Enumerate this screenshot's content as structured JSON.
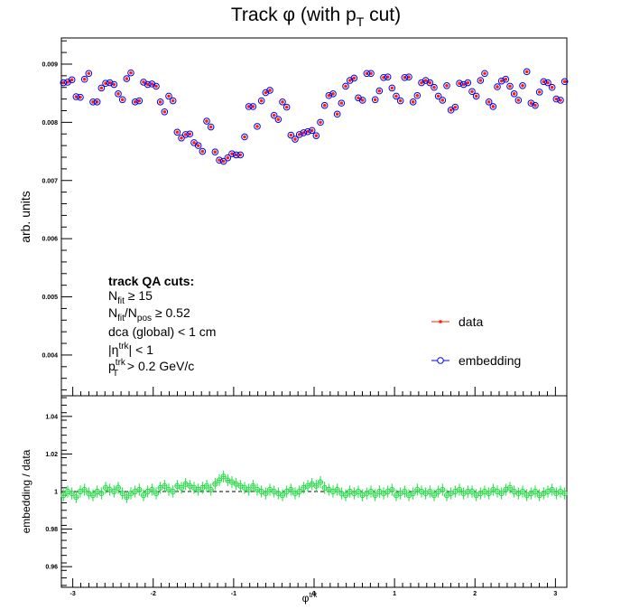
{
  "chart_data": [
    {
      "type": "scatter",
      "title_main": "Track φ (with p",
      "title_sub": "T",
      "title_end": " cut)",
      "ylabel": "arb. units",
      "ylim": [
        0.0033,
        0.00945
      ],
      "xlim": [
        -3.1416,
        3.1416
      ],
      "yticks": [
        "0.004",
        "0.005",
        "0.006",
        "0.007",
        "0.008",
        "0.009"
      ],
      "ytick_values": [
        0.004,
        0.005,
        0.006,
        0.007,
        0.008,
        0.009
      ],
      "grid": false,
      "legend_position": "bottom-right",
      "legend": [
        {
          "name": "data",
          "color": "#ff2200",
          "marker": "dot"
        },
        {
          "name": "embedding",
          "color": "#0000ee",
          "marker": "open-circle"
        }
      ],
      "annotation": {
        "heading": "track QA cuts:",
        "lines": [
          {
            "a": "N",
            "sub": "fit",
            "b": " ≥ 15"
          },
          {
            "a": "N",
            "sub": "fit",
            "b": "/N",
            "sub2": "pos",
            "c": " ≥ 0.52"
          },
          {
            "a": "dca (global) < 1 cm"
          },
          {
            "a": "|η",
            "sup": "trk",
            "b": "| < 1"
          },
          {
            "a": "p",
            "sup": "trk",
            "sub": "T",
            "b": " > 0.2 GeV/c"
          }
        ]
      },
      "series": [
        {
          "name": "data",
          "x_range": [
            -3.1416,
            3.1416
          ],
          "n_bins": 120,
          "values": [
            0.00868,
            0.00869,
            0.00873,
            0.00844,
            0.00843,
            0.00874,
            0.00884,
            0.00835,
            0.00835,
            0.00859,
            0.00867,
            0.00868,
            0.00865,
            0.00849,
            0.00839,
            0.00875,
            0.00885,
            0.00835,
            0.00837,
            0.00869,
            0.00865,
            0.00866,
            0.00862,
            0.00835,
            0.00818,
            0.00845,
            0.00837,
            0.00783,
            0.00773,
            0.00779,
            0.0078,
            0.00765,
            0.0076,
            0.0075,
            0.00802,
            0.00792,
            0.00749,
            0.00735,
            0.00733,
            0.00739,
            0.00746,
            0.00744,
            0.00744,
            0.00775,
            0.00827,
            0.00827,
            0.00793,
            0.00837,
            0.00851,
            0.00855,
            0.00812,
            0.00805,
            0.00835,
            0.00826,
            0.00778,
            0.00771,
            0.00779,
            0.00782,
            0.00784,
            0.00786,
            0.00777,
            0.008,
            0.00829,
            0.00846,
            0.00849,
            0.00814,
            0.00833,
            0.00862,
            0.00872,
            0.00876,
            0.00842,
            0.00838,
            0.00884,
            0.00884,
            0.00839,
            0.00854,
            0.00877,
            0.00878,
            0.00859,
            0.00845,
            0.00837,
            0.00877,
            0.00878,
            0.00835,
            0.00846,
            0.00868,
            0.00872,
            0.00868,
            0.0086,
            0.00845,
            0.00838,
            0.00863,
            0.00821,
            0.00826,
            0.00867,
            0.00865,
            0.00868,
            0.00853,
            0.00845,
            0.00872,
            0.00884,
            0.00835,
            0.00827,
            0.00861,
            0.00871,
            0.00874,
            0.00862,
            0.00849,
            0.00838,
            0.00863,
            0.00887,
            0.00833,
            0.00829,
            0.00852,
            0.0087,
            0.00868,
            0.0086,
            0.0084,
            0.00838,
            0.0087
          ]
        },
        {
          "name": "embedding",
          "x_range": [
            -3.1416,
            3.1416
          ],
          "n_bins": 120,
          "values": [
            0.00868,
            0.00869,
            0.00873,
            0.00844,
            0.00843,
            0.00874,
            0.00884,
            0.00835,
            0.00835,
            0.00859,
            0.00867,
            0.00868,
            0.00865,
            0.00849,
            0.00839,
            0.00875,
            0.00885,
            0.00835,
            0.00837,
            0.00869,
            0.00865,
            0.00866,
            0.00862,
            0.00835,
            0.00818,
            0.00845,
            0.00837,
            0.00783,
            0.00773,
            0.00779,
            0.0078,
            0.00765,
            0.0076,
            0.0075,
            0.00802,
            0.00792,
            0.00749,
            0.00735,
            0.00733,
            0.00739,
            0.00746,
            0.00744,
            0.00744,
            0.00775,
            0.00827,
            0.00827,
            0.00793,
            0.00837,
            0.00851,
            0.00855,
            0.00812,
            0.00805,
            0.00835,
            0.00826,
            0.00778,
            0.00771,
            0.00779,
            0.00782,
            0.00784,
            0.00786,
            0.00777,
            0.008,
            0.00829,
            0.00846,
            0.00849,
            0.00814,
            0.00833,
            0.00862,
            0.00872,
            0.00876,
            0.00842,
            0.00838,
            0.00884,
            0.00884,
            0.00839,
            0.00854,
            0.00877,
            0.00878,
            0.00859,
            0.00845,
            0.00837,
            0.00877,
            0.00878,
            0.00835,
            0.00846,
            0.00868,
            0.00872,
            0.00868,
            0.0086,
            0.00845,
            0.00838,
            0.00863,
            0.00821,
            0.00826,
            0.00867,
            0.00865,
            0.00868,
            0.00853,
            0.00845,
            0.00872,
            0.00884,
            0.00835,
            0.00827,
            0.00861,
            0.00871,
            0.00874,
            0.00862,
            0.00849,
            0.00838,
            0.00863,
            0.00887,
            0.00833,
            0.00829,
            0.00852,
            0.0087,
            0.00868,
            0.0086,
            0.0084,
            0.00838,
            0.0087
          ]
        }
      ]
    },
    {
      "type": "scatter",
      "xlabel_main": "φ",
      "xlabel_sup": "trk",
      "ylabel": "embedding / data",
      "ylim": [
        0.949,
        1.051
      ],
      "xlim": [
        -3.1416,
        3.1416
      ],
      "yticks": [
        "0.96",
        "0.98",
        "1",
        "1.02",
        "1.04"
      ],
      "ytick_values": [
        0.96,
        0.98,
        1.0,
        1.02,
        1.04
      ],
      "xticks": [
        "-3",
        "-2",
        "-1",
        "0",
        "1",
        "2",
        "3"
      ],
      "xtick_values": [
        -3,
        -2,
        -1,
        0,
        1,
        2,
        3
      ],
      "reference_line": 1.0,
      "grid": false,
      "series": [
        {
          "name": "",
          "color": "#22dd44",
          "x_range": [
            -3.1416,
            3.1416
          ],
          "n_bins": 120,
          "error": 0.0032,
          "values": [
            0.998,
            1.0,
            0.999,
            0.997,
            1.0,
            1.001,
            0.999,
            0.998,
            1.0,
            0.999,
            1.002,
            1.001,
            1.0,
            1.002,
            0.999,
            0.997,
            0.999,
            1.0,
            1.001,
            0.998,
            1.0,
            1.001,
            0.999,
            1.002,
            1.003,
            1.001,
            1.0,
            1.003,
            1.002,
            1.004,
            1.003,
            1.002,
            1.001,
            1.002,
            1.003,
            1.001,
            1.004,
            1.006,
            1.008,
            1.006,
            1.005,
            1.004,
            1.003,
            1.002,
            1.001,
            1.003,
            1.001,
            1.0,
            0.999,
            1.001,
            1.0,
            0.999,
            0.998,
            1.0,
            1.001,
            0.999,
            1.0,
            1.002,
            1.003,
            1.004,
            1.003,
            1.005,
            1.002,
            1.001,
            1.0,
            1.001,
            0.999,
            0.998,
            1.0,
            0.999,
            1.0,
            0.998,
            0.999,
            1.0,
            0.998,
            1.0,
            0.999,
            1.0,
            1.001,
            0.998,
            0.999,
            1.0,
            0.998,
            0.999,
            1.001,
            1.0,
            0.999,
            1.0,
            0.998,
            1.0,
            1.001,
            0.998,
            0.999,
            1.0,
            1.001,
            0.999,
            1.0,
            1.0,
            0.998,
            0.999,
            1.0,
            0.999,
            1.001,
            1.0,
            0.999,
            1.001,
            1.002,
            1.0,
            0.999,
            1.0,
            0.998,
            0.999,
            1.0,
            0.998,
            0.999,
            1.0,
            1.001,
            0.999,
            1.0,
            0.999
          ]
        }
      ]
    }
  ]
}
